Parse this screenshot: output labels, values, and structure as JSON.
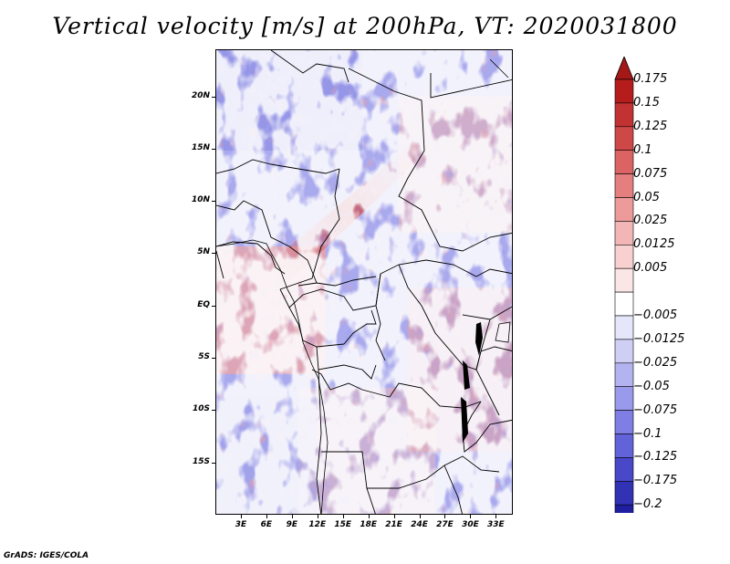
{
  "title": "Vertical velocity [m/s] at 200hPa, VT: 2020031800",
  "credit": "GrADS: IGES/COLA",
  "map": {
    "lat_range": [
      -20,
      24.5
    ],
    "lon_range": [
      0,
      35
    ],
    "lat_ticks": [
      {
        "value": 20,
        "label": "20N"
      },
      {
        "value": 15,
        "label": "15N"
      },
      {
        "value": 10,
        "label": "10N"
      },
      {
        "value": 5,
        "label": "5N"
      },
      {
        "value": 0,
        "label": "EQ"
      },
      {
        "value": -5,
        "label": "5S"
      },
      {
        "value": -10,
        "label": "10S"
      },
      {
        "value": -15,
        "label": "15S"
      }
    ],
    "lon_ticks": [
      {
        "value": 3,
        "label": "3E"
      },
      {
        "value": 6,
        "label": "6E"
      },
      {
        "value": 9,
        "label": "9E"
      },
      {
        "value": 12,
        "label": "12E"
      },
      {
        "value": 15,
        "label": "15E"
      },
      {
        "value": 18,
        "label": "18E"
      },
      {
        "value": 21,
        "label": "21E"
      },
      {
        "value": 24,
        "label": "24E"
      },
      {
        "value": 27,
        "label": "27E"
      },
      {
        "value": 30,
        "label": "30E"
      },
      {
        "value": 33,
        "label": "33E"
      }
    ]
  },
  "colorbar": {
    "levels": [
      {
        "label": "0.175",
        "color": "#b51d1d"
      },
      {
        "label": "0.15",
        "color": "#c23232"
      },
      {
        "label": "0.125",
        "color": "#cf4848"
      },
      {
        "label": "0.1",
        "color": "#dc6363"
      },
      {
        "label": "0.075",
        "color": "#e57e7e"
      },
      {
        "label": "0.05",
        "color": "#ec9a9a"
      },
      {
        "label": "0.025",
        "color": "#f3b6b6"
      },
      {
        "label": "0.0125",
        "color": "#f8d0d0"
      },
      {
        "label": "0.005",
        "color": "#fbe6e6"
      },
      {
        "label": "",
        "color": "#ffffff"
      },
      {
        "label": "−0.005",
        "color": "#e6e6fb"
      },
      {
        "label": "−0.0125",
        "color": "#cfcff6"
      },
      {
        "label": "−0.025",
        "color": "#b3b3f1"
      },
      {
        "label": "−0.05",
        "color": "#9a9aec"
      },
      {
        "label": "−0.075",
        "color": "#7e7ee4"
      },
      {
        "label": "−0.1",
        "color": "#6363d9"
      },
      {
        "label": "−0.125",
        "color": "#4848c9"
      },
      {
        "label": "−0.175",
        "color": "#3232b5"
      },
      {
        "label": "−0.2",
        "color": "#1f1fa0"
      }
    ],
    "top_color": "#a41818",
    "bottom_color": "#1a1a8c"
  }
}
